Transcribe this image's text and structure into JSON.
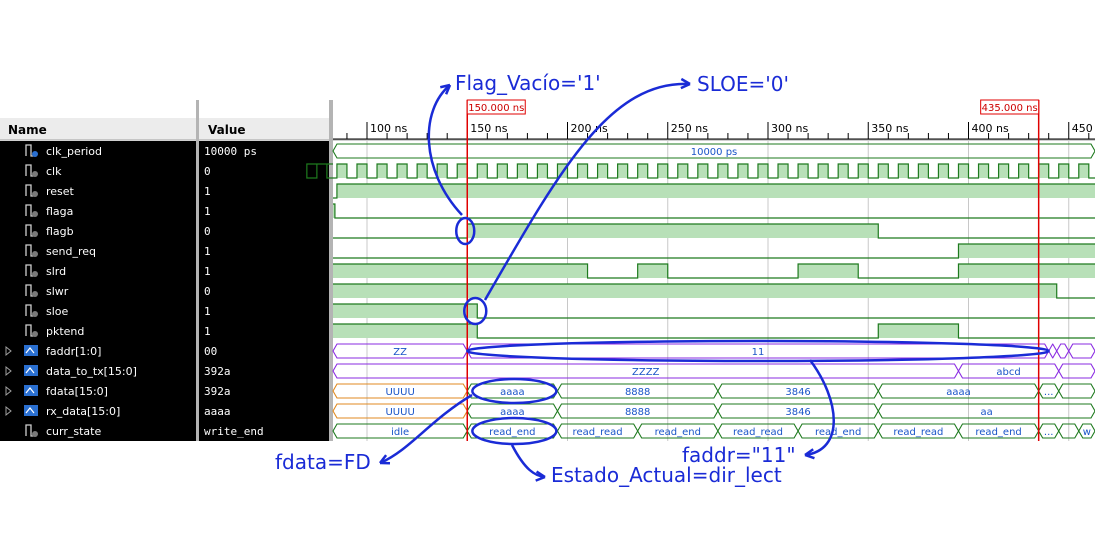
{
  "columns": {
    "name": "Name",
    "value": "Value"
  },
  "timeline": {
    "ticks": [
      "100 ns",
      "150 ns",
      "200 ns",
      "250 ns",
      "300 ns",
      "350 ns",
      "400 ns",
      "450 ns"
    ],
    "cursors": [
      "150.000 ns",
      "435.000 ns"
    ]
  },
  "signals": [
    {
      "name": "clk_period",
      "value": "10000 ps",
      "type": "const",
      "expandable": false
    },
    {
      "name": "clk",
      "value": "0",
      "type": "bit",
      "expandable": false
    },
    {
      "name": "reset",
      "value": "1",
      "type": "bit",
      "expandable": false
    },
    {
      "name": "flaga",
      "value": "1",
      "type": "bit",
      "expandable": false
    },
    {
      "name": "flagb",
      "value": "0",
      "type": "bit",
      "expandable": false
    },
    {
      "name": "send_req",
      "value": "1",
      "type": "bit",
      "expandable": false
    },
    {
      "name": "slrd",
      "value": "1",
      "type": "bit",
      "expandable": false
    },
    {
      "name": "slwr",
      "value": "0",
      "type": "bit",
      "expandable": false
    },
    {
      "name": "sloe",
      "value": "1",
      "type": "bit",
      "expandable": false
    },
    {
      "name": "pktend",
      "value": "1",
      "type": "bit",
      "expandable": false
    },
    {
      "name": "faddr[1:0]",
      "value": "00",
      "type": "bus",
      "expandable": true
    },
    {
      "name": "data_to_tx[15:0]",
      "value": "392a",
      "type": "bus",
      "expandable": true
    },
    {
      "name": "fdata[15:0]",
      "value": "392a",
      "type": "bus",
      "expandable": true
    },
    {
      "name": "rx_data[15:0]",
      "value": "aaaa",
      "type": "bus",
      "expandable": true
    },
    {
      "name": "curr_state",
      "value": "write_end",
      "type": "enum",
      "expandable": false
    }
  ],
  "bus_labels": {
    "clk_period": [
      "10000 ps"
    ],
    "faddr": [
      "ZZ",
      "11",
      ""
    ],
    "data_to_tx": [
      "ZZZZ",
      "abcd"
    ],
    "fdata": [
      "UUUU",
      "aaaa",
      "8888",
      "3846",
      "aaaa",
      "..."
    ],
    "rx_data": [
      "UUUU",
      "aaaa",
      "8888",
      "3846",
      "aa"
    ],
    "curr_state": [
      "idle",
      "read_end",
      "read_read",
      "read_end",
      "read_read",
      "read_end",
      "read_read",
      "read_end",
      "...",
      "w"
    ]
  },
  "annotations": [
    "Flag_Vacío='1'",
    "SLOE='0'",
    "fdata=FD",
    "Estado_Actual=dir_lect",
    "faddr=\"11\""
  ],
  "colors": {
    "wave": "#1e7a1e",
    "fill": "#b8e0b8",
    "bus_text": "#1a55c8",
    "cursor": "#e00000",
    "annotation": "#1a2bd6",
    "name_panel": "#000000"
  }
}
